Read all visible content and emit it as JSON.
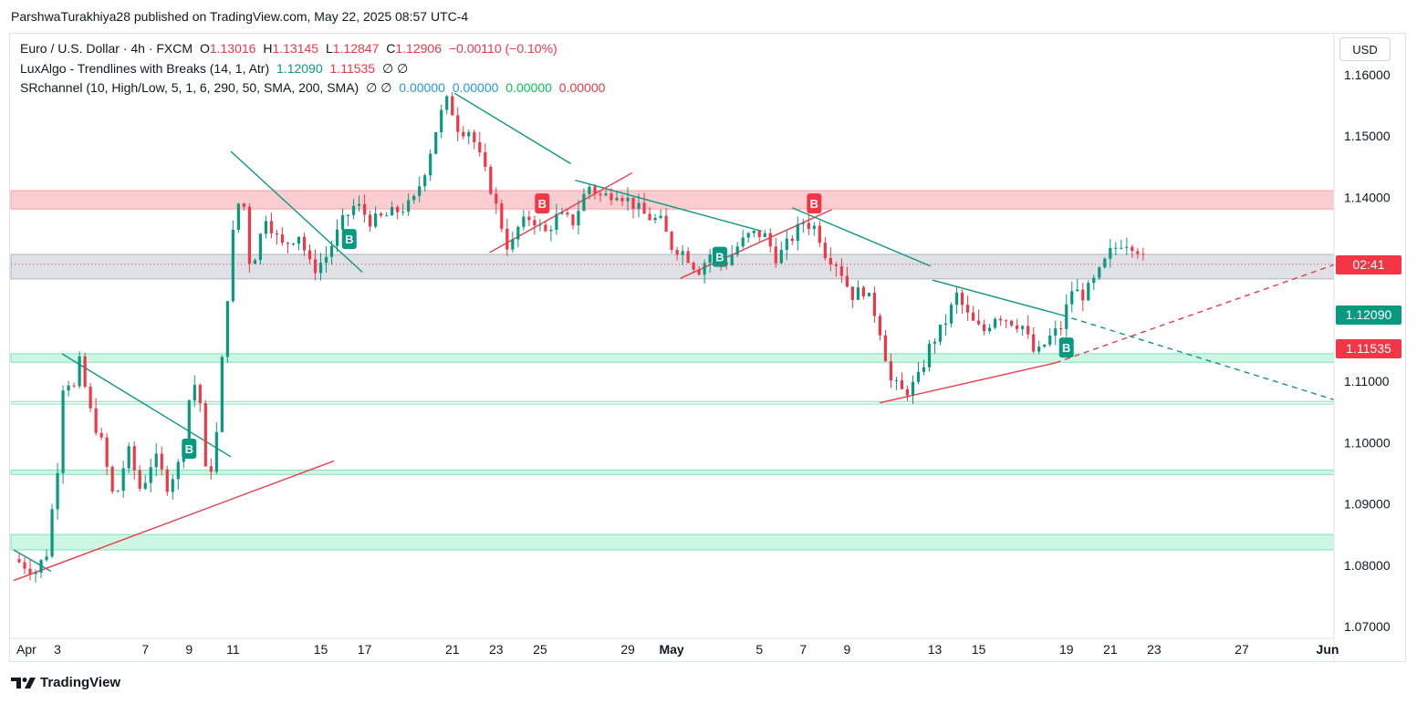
{
  "caption": "ParshwaTurakhiya28 published on TradingView.com, May 22, 2025 08:57 UTC-4",
  "legend": {
    "symbol": "Euro / U.S. Dollar · 4h · FXCM",
    "o_label": "O",
    "o_value": "1.13016",
    "h_label": "H",
    "h_value": "1.13145",
    "l_label": "L",
    "l_value": "1.12847",
    "c_label": "C",
    "c_value": "1.12906",
    "change": "−0.00110 (−0.10%)",
    "ind1_name": "LuxAlgo - Trendlines with Breaks (14, 1, Atr)",
    "ind1_v1": "1.12090",
    "ind1_v2": "1.11535",
    "ind1_icons": "∅ ∅",
    "ind2_name": "SRchannel (10, High/Low, 5, 1, 6, 290, 50, SMA, 200, SMA)",
    "ind2_icons": "∅ ∅",
    "ind2_v1": "0.00000",
    "ind2_v2": "0.00000",
    "ind2_v3": "0.00000",
    "ind2_v4": "0.00000"
  },
  "currency": "USD",
  "footer": {
    "brand": "TradingView"
  },
  "price_tags": {
    "countdown": "02:41",
    "trend_upper": "1.12090",
    "trend_lower": "1.11535",
    "countdown_price": 1.1291
  },
  "colors": {
    "up": "#089981",
    "down": "#f23645",
    "resistance_zone": "#f8b9bd",
    "support_zone": "#b9f2d9",
    "neutral_zone": "#d1d4dc",
    "trend_teal": "#089981",
    "trend_red": "#f23645"
  },
  "chart_data": {
    "type": "candlestick",
    "symbol": "EURUSD",
    "timeframe": "4h",
    "ylim": [
      1.066,
      1.164
    ],
    "y_ticks": [
      1.07,
      1.08,
      1.09,
      1.1,
      1.11,
      1.12,
      1.13,
      1.14,
      1.15,
      1.16
    ],
    "y_tick_labels": [
      "1.07000",
      "1.08000",
      "1.09000",
      "1.10000",
      "1.11000",
      "",
      "",
      "1.14000",
      "1.15000",
      "1.16000"
    ],
    "x_ticks": [
      {
        "day": 1,
        "label": "Apr"
      },
      {
        "day": 3,
        "label": "3"
      },
      {
        "day": 7,
        "label": "7"
      },
      {
        "day": 9,
        "label": "9"
      },
      {
        "day": 11,
        "label": "11"
      },
      {
        "day": 15,
        "label": "15"
      },
      {
        "day": 17,
        "label": "17"
      },
      {
        "day": 21,
        "label": "21"
      },
      {
        "day": 23,
        "label": "23"
      },
      {
        "day": 25,
        "label": "25"
      },
      {
        "day": 29,
        "label": "29"
      },
      {
        "day": 31,
        "label": "May"
      },
      {
        "day": 35,
        "label": "5"
      },
      {
        "day": 37,
        "label": "7"
      },
      {
        "day": 39,
        "label": "9"
      },
      {
        "day": 43,
        "label": "13"
      },
      {
        "day": 45,
        "label": "15"
      },
      {
        "day": 49,
        "label": "19"
      },
      {
        "day": 51,
        "label": "21"
      },
      {
        "day": 53,
        "label": "23"
      },
      {
        "day": 57,
        "label": "27"
      },
      {
        "day": 61,
        "label": "Jun"
      }
    ],
    "x_unit": "days since Apr 1 (approx.)",
    "xlim": [
      1,
      61.2
    ],
    "price_path": [
      [
        1.0,
        1.081
      ],
      [
        2.0,
        1.079
      ],
      [
        2.5,
        1.082
      ],
      [
        3.0,
        1.096
      ],
      [
        3.3,
        1.112
      ],
      [
        3.7,
        1.108
      ],
      [
        4.0,
        1.113
      ],
      [
        4.5,
        1.105
      ],
      [
        5.0,
        1.1
      ],
      [
        5.6,
        1.09
      ],
      [
        6.2,
        1.099
      ],
      [
        6.8,
        1.092
      ],
      [
        7.4,
        1.098
      ],
      [
        8.0,
        1.093
      ],
      [
        8.6,
        1.097
      ],
      [
        9.0,
        1.107
      ],
      [
        9.4,
        1.111
      ],
      [
        9.8,
        1.093
      ],
      [
        10.2,
        1.099
      ],
      [
        10.6,
        1.118
      ],
      [
        11.0,
        1.134
      ],
      [
        11.4,
        1.142
      ],
      [
        11.8,
        1.128
      ],
      [
        12.5,
        1.137
      ],
      [
        13.2,
        1.132
      ],
      [
        14.0,
        1.134
      ],
      [
        14.6,
        1.128
      ],
      [
        15.2,
        1.13
      ],
      [
        16.0,
        1.136
      ],
      [
        16.6,
        1.139
      ],
      [
        17.3,
        1.136
      ],
      [
        18.0,
        1.137
      ],
      [
        18.6,
        1.138
      ],
      [
        19.2,
        1.139
      ],
      [
        19.8,
        1.145
      ],
      [
        20.4,
        1.153
      ],
      [
        20.8,
        1.156
      ],
      [
        21.3,
        1.151
      ],
      [
        21.8,
        1.151
      ],
      [
        22.3,
        1.146
      ],
      [
        22.8,
        1.141
      ],
      [
        23.2,
        1.136
      ],
      [
        23.6,
        1.131
      ],
      [
        24.0,
        1.135
      ],
      [
        24.6,
        1.137
      ],
      [
        25.2,
        1.134
      ],
      [
        25.8,
        1.137
      ],
      [
        26.5,
        1.136
      ],
      [
        27.2,
        1.142
      ],
      [
        27.8,
        1.14
      ],
      [
        28.5,
        1.141
      ],
      [
        29.2,
        1.139
      ],
      [
        29.8,
        1.137
      ],
      [
        30.5,
        1.136
      ],
      [
        31.0,
        1.132
      ],
      [
        31.6,
        1.131
      ],
      [
        32.2,
        1.128
      ],
      [
        32.8,
        1.131
      ],
      [
        33.4,
        1.129
      ],
      [
        34.0,
        1.132
      ],
      [
        34.6,
        1.134
      ],
      [
        35.2,
        1.134
      ],
      [
        35.8,
        1.13
      ],
      [
        36.4,
        1.133
      ],
      [
        37.0,
        1.136
      ],
      [
        37.6,
        1.135
      ],
      [
        38.0,
        1.131
      ],
      [
        38.6,
        1.129
      ],
      [
        39.2,
        1.124
      ],
      [
        39.8,
        1.125
      ],
      [
        40.4,
        1.12
      ],
      [
        41.0,
        1.11
      ],
      [
        41.6,
        1.108
      ],
      [
        42.2,
        1.11
      ],
      [
        42.8,
        1.116
      ],
      [
        43.4,
        1.119
      ],
      [
        44.0,
        1.124
      ],
      [
        44.6,
        1.12
      ],
      [
        45.2,
        1.118
      ],
      [
        45.8,
        1.121
      ],
      [
        46.4,
        1.12
      ],
      [
        47.0,
        1.119
      ],
      [
        47.6,
        1.114
      ],
      [
        48.2,
        1.117
      ],
      [
        48.8,
        1.119
      ],
      [
        49.2,
        1.125
      ],
      [
        49.8,
        1.124
      ],
      [
        50.4,
        1.127
      ],
      [
        51.0,
        1.131
      ],
      [
        51.6,
        1.133
      ],
      [
        52.2,
        1.132
      ],
      [
        52.6,
        1.129
      ]
    ],
    "candle_legend": {
      "open": 1.13016,
      "high": 1.13145,
      "low": 1.12847,
      "close": 1.12906
    },
    "zones": [
      {
        "from": 1.1381,
        "to": 1.1411,
        "kind": "resistance"
      },
      {
        "from": 1.1267,
        "to": 1.1307,
        "kind": "neutral"
      },
      {
        "from": 1.1131,
        "to": 1.1145,
        "kind": "support"
      },
      {
        "from": 1.0948,
        "to": 1.0955,
        "kind": "support"
      },
      {
        "from": 1.0825,
        "to": 1.085,
        "kind": "support"
      }
    ],
    "support_lines": [
      1.1067,
      1.1063
    ],
    "trendlines": [
      {
        "color": "teal",
        "dashed": false,
        "points": [
          [
            1.0,
            1.0825
          ],
          [
            2.7,
            1.079
          ]
        ]
      },
      {
        "color": "teal",
        "dashed": false,
        "points": [
          [
            3.2,
            1.1145
          ],
          [
            10.9,
            1.0977
          ]
        ]
      },
      {
        "color": "teal",
        "dashed": false,
        "points": [
          [
            10.9,
            1.1475
          ],
          [
            16.9,
            1.1278
          ]
        ]
      },
      {
        "color": "teal",
        "dashed": false,
        "points": [
          [
            21.1,
            1.157
          ],
          [
            26.4,
            1.1455
          ]
        ]
      },
      {
        "color": "teal",
        "dashed": false,
        "points": [
          [
            26.6,
            1.1428
          ],
          [
            35.1,
            1.1345
          ]
        ]
      },
      {
        "color": "teal",
        "dashed": false,
        "points": [
          [
            36.5,
            1.1383
          ],
          [
            42.8,
            1.1288
          ]
        ]
      },
      {
        "color": "teal",
        "dashed": false,
        "points": [
          [
            42.9,
            1.1265
          ],
          [
            48.8,
            1.1208
          ]
        ]
      },
      {
        "color": "teal",
        "dashed": true,
        "points": [
          [
            48.8,
            1.1208
          ],
          [
            61.2,
            1.107
          ]
        ]
      },
      {
        "color": "red",
        "dashed": false,
        "points": [
          [
            1.0,
            1.0775
          ],
          [
            15.6,
            1.097
          ]
        ]
      },
      {
        "color": "red",
        "dashed": false,
        "points": [
          [
            22.7,
            1.131
          ],
          [
            29.2,
            1.144
          ]
        ]
      },
      {
        "color": "red",
        "dashed": false,
        "points": [
          [
            31.4,
            1.1268
          ],
          [
            38.3,
            1.138
          ]
        ]
      },
      {
        "color": "red",
        "dashed": false,
        "points": [
          [
            40.5,
            1.1065
          ],
          [
            48.5,
            1.113
          ]
        ]
      },
      {
        "color": "red",
        "dashed": true,
        "points": [
          [
            48.5,
            1.113
          ],
          [
            61.2,
            1.129
          ]
        ]
      }
    ],
    "break_markers": [
      {
        "label": "B",
        "day": 9.0,
        "price": 1.099,
        "color": "teal"
      },
      {
        "label": "B",
        "day": 16.3,
        "price": 1.1332,
        "color": "teal"
      },
      {
        "label": "B",
        "day": 25.1,
        "price": 1.139,
        "color": "red"
      },
      {
        "label": "B",
        "day": 33.2,
        "price": 1.1303,
        "color": "teal"
      },
      {
        "label": "B",
        "day": 37.5,
        "price": 1.139,
        "color": "red"
      },
      {
        "label": "B",
        "day": 49.0,
        "price": 1.1155,
        "color": "teal"
      }
    ]
  }
}
